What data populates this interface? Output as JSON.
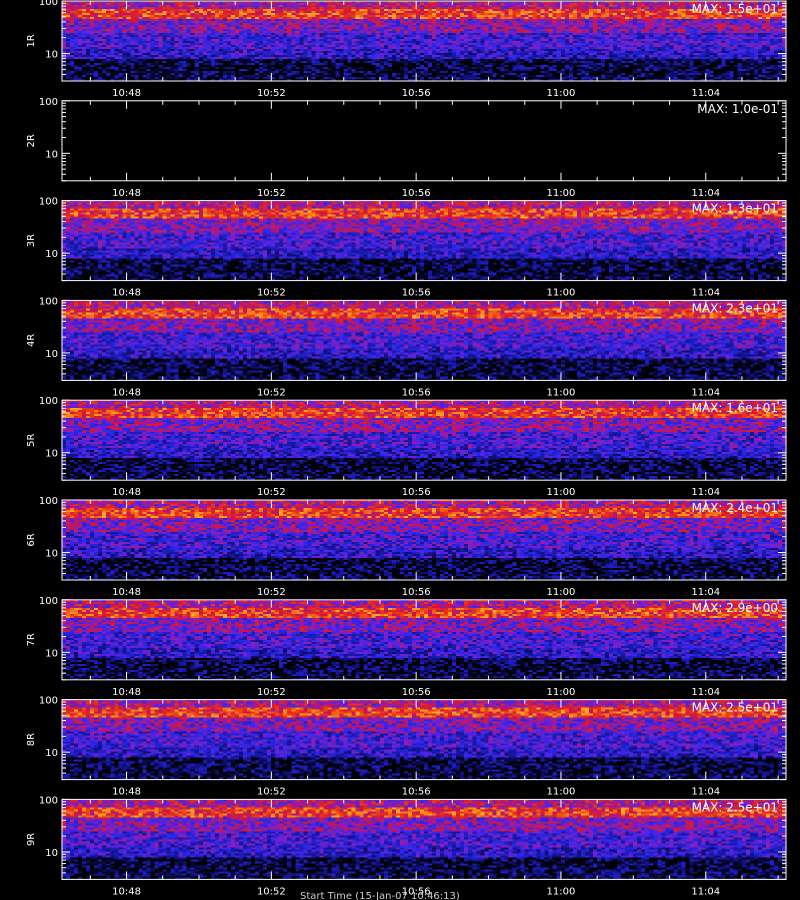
{
  "colors": {
    "background": "#000000",
    "axis": "#ffffff",
    "text": "#ffffff"
  },
  "xlabel": "Start Time (15-Jan-07 10:46:13)",
  "chart_data": [
    {
      "type": "heatmap",
      "ylabel": "1R",
      "max_label": "MAX: 1.5e+01",
      "max": 15.0,
      "yscale": "log",
      "ylim": [
        3,
        100
      ],
      "y_ticks": [
        "10",
        "100"
      ],
      "x_ticks": [
        "10:48",
        "10:52",
        "10:56",
        "11:00",
        "11:04"
      ],
      "xlim": [
        "10:46:13",
        "11:06:13"
      ],
      "grid": false
    },
    {
      "type": "heatmap",
      "ylabel": "2R",
      "max_label": "MAX: 1.0e-01",
      "max": 0.1,
      "yscale": "log",
      "ylim": [
        3,
        100
      ],
      "y_ticks": [
        "10",
        "100"
      ],
      "x_ticks": [
        "10:48",
        "10:52",
        "10:56",
        "11:00",
        "11:04"
      ],
      "xlim": [
        "10:46:13",
        "11:06:13"
      ],
      "grid": false
    },
    {
      "type": "heatmap",
      "ylabel": "3R",
      "max_label": "MAX: 1.3e+01",
      "max": 13.0,
      "yscale": "log",
      "ylim": [
        3,
        100
      ],
      "y_ticks": [
        "10",
        "100"
      ],
      "x_ticks": [
        "10:48",
        "10:52",
        "10:56",
        "11:00",
        "11:04"
      ],
      "xlim": [
        "10:46:13",
        "11:06:13"
      ],
      "grid": false
    },
    {
      "type": "heatmap",
      "ylabel": "4R",
      "max_label": "MAX: 2.3e+01",
      "max": 23.0,
      "yscale": "log",
      "ylim": [
        3,
        100
      ],
      "y_ticks": [
        "10",
        "100"
      ],
      "x_ticks": [
        "10:48",
        "10:52",
        "10:56",
        "11:00",
        "11:04"
      ],
      "xlim": [
        "10:46:13",
        "11:06:13"
      ],
      "grid": false
    },
    {
      "type": "heatmap",
      "ylabel": "5R",
      "max_label": "MAX: 1.6e+01",
      "max": 16.0,
      "yscale": "log",
      "ylim": [
        3,
        100
      ],
      "y_ticks": [
        "10",
        "100"
      ],
      "x_ticks": [
        "10:48",
        "10:52",
        "10:56",
        "11:00",
        "11:04"
      ],
      "xlim": [
        "10:46:13",
        "11:06:13"
      ],
      "grid": false
    },
    {
      "type": "heatmap",
      "ylabel": "6R",
      "max_label": "MAX: 2.4e+01",
      "max": 24.0,
      "yscale": "log",
      "ylim": [
        3,
        100
      ],
      "y_ticks": [
        "10",
        "100"
      ],
      "x_ticks": [
        "10:48",
        "10:52",
        "10:56",
        "11:00",
        "11:04"
      ],
      "xlim": [
        "10:46:13",
        "11:06:13"
      ],
      "grid": false
    },
    {
      "type": "heatmap",
      "ylabel": "7R",
      "max_label": "MAX: 2.9e+00",
      "max": 2.9,
      "yscale": "log",
      "ylim": [
        3,
        100
      ],
      "y_ticks": [
        "10",
        "100"
      ],
      "x_ticks": [
        "10:48",
        "10:52",
        "10:56",
        "11:00",
        "11:04"
      ],
      "xlim": [
        "10:46:13",
        "11:06:13"
      ],
      "grid": false
    },
    {
      "type": "heatmap",
      "ylabel": "8R",
      "max_label": "MAX: 2.5e+01",
      "max": 25.0,
      "yscale": "log",
      "ylim": [
        3,
        100
      ],
      "y_ticks": [
        "10",
        "100"
      ],
      "x_ticks": [
        "10:48",
        "10:52",
        "10:56",
        "11:00",
        "11:04"
      ],
      "xlim": [
        "10:46:13",
        "11:06:13"
      ],
      "grid": false
    },
    {
      "type": "heatmap",
      "ylabel": "9R",
      "max_label": "MAX: 2.5e+01",
      "max": 25.0,
      "yscale": "log",
      "ylim": [
        3,
        100
      ],
      "y_ticks": [
        "10",
        "100"
      ],
      "x_ticks": [
        "10:48",
        "10:52",
        "10:56",
        "11:00",
        "11:04"
      ],
      "xlim": [
        "10:46:13",
        "11:06:13"
      ],
      "grid": false
    }
  ]
}
